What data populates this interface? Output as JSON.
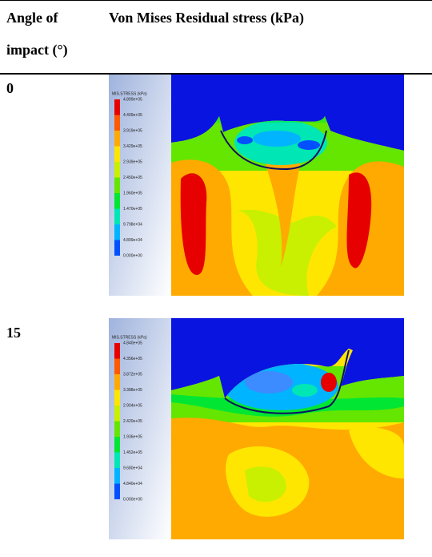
{
  "table": {
    "header": [
      "Angle of impact (°)",
      "Von Mises Residual stress (kPa)"
    ],
    "rows": [
      {
        "angle": "0",
        "figure": {
          "legend_title": "MIS.STRESS (kPa)",
          "legend_values": [
            "4.899e+05",
            "4.409e+05",
            "3.919e+05",
            "3.429e+05",
            "2.939e+05",
            "2.450e+05",
            "1.960e+05",
            "1.470e+05",
            "9.798e+04",
            "4.899e+04",
            "0.000e+00"
          ]
        }
      },
      {
        "angle": "15",
        "figure": {
          "legend_title": "MIS.STRESS (kPa)",
          "legend_values": [
            "4.840e+05",
            "4.356e+05",
            "3.872e+05",
            "3.388e+05",
            "2.904e+05",
            "2.420e+05",
            "1.936e+05",
            "1.452e+05",
            "9.680e+04",
            "4.840e+04",
            "0.000e+00"
          ]
        }
      }
    ]
  }
}
